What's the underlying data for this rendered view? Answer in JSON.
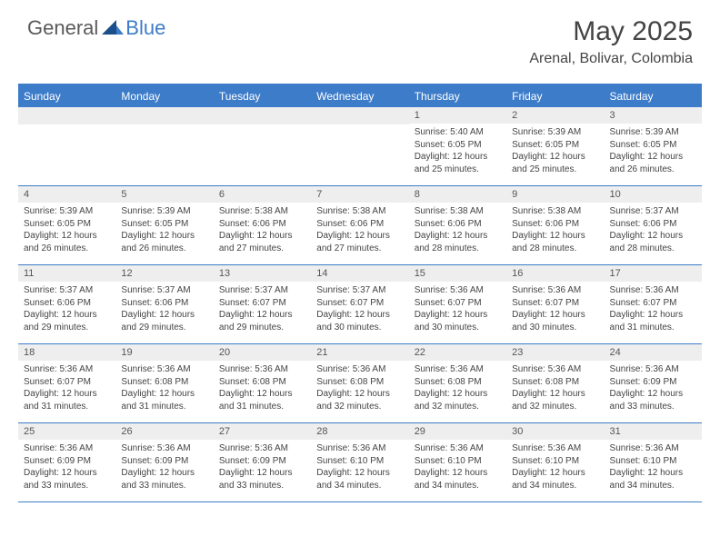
{
  "brand": {
    "general": "General",
    "blue": "Blue"
  },
  "title": "May 2025",
  "location": "Arenal, Bolivar, Colombia",
  "colors": {
    "header_bg": "#3d7cc9",
    "num_bar_bg": "#eeeeee",
    "text": "#444444",
    "border": "#3d7cc9"
  },
  "dow": [
    "Sunday",
    "Monday",
    "Tuesday",
    "Wednesday",
    "Thursday",
    "Friday",
    "Saturday"
  ],
  "weeks": [
    [
      {
        "n": "",
        "sr": "",
        "ss": "",
        "dl": ""
      },
      {
        "n": "",
        "sr": "",
        "ss": "",
        "dl": ""
      },
      {
        "n": "",
        "sr": "",
        "ss": "",
        "dl": ""
      },
      {
        "n": "",
        "sr": "",
        "ss": "",
        "dl": ""
      },
      {
        "n": "1",
        "sr": "Sunrise: 5:40 AM",
        "ss": "Sunset: 6:05 PM",
        "dl": "Daylight: 12 hours and 25 minutes."
      },
      {
        "n": "2",
        "sr": "Sunrise: 5:39 AM",
        "ss": "Sunset: 6:05 PM",
        "dl": "Daylight: 12 hours and 25 minutes."
      },
      {
        "n": "3",
        "sr": "Sunrise: 5:39 AM",
        "ss": "Sunset: 6:05 PM",
        "dl": "Daylight: 12 hours and 26 minutes."
      }
    ],
    [
      {
        "n": "4",
        "sr": "Sunrise: 5:39 AM",
        "ss": "Sunset: 6:05 PM",
        "dl": "Daylight: 12 hours and 26 minutes."
      },
      {
        "n": "5",
        "sr": "Sunrise: 5:39 AM",
        "ss": "Sunset: 6:05 PM",
        "dl": "Daylight: 12 hours and 26 minutes."
      },
      {
        "n": "6",
        "sr": "Sunrise: 5:38 AM",
        "ss": "Sunset: 6:06 PM",
        "dl": "Daylight: 12 hours and 27 minutes."
      },
      {
        "n": "7",
        "sr": "Sunrise: 5:38 AM",
        "ss": "Sunset: 6:06 PM",
        "dl": "Daylight: 12 hours and 27 minutes."
      },
      {
        "n": "8",
        "sr": "Sunrise: 5:38 AM",
        "ss": "Sunset: 6:06 PM",
        "dl": "Daylight: 12 hours and 28 minutes."
      },
      {
        "n": "9",
        "sr": "Sunrise: 5:38 AM",
        "ss": "Sunset: 6:06 PM",
        "dl": "Daylight: 12 hours and 28 minutes."
      },
      {
        "n": "10",
        "sr": "Sunrise: 5:37 AM",
        "ss": "Sunset: 6:06 PM",
        "dl": "Daylight: 12 hours and 28 minutes."
      }
    ],
    [
      {
        "n": "11",
        "sr": "Sunrise: 5:37 AM",
        "ss": "Sunset: 6:06 PM",
        "dl": "Daylight: 12 hours and 29 minutes."
      },
      {
        "n": "12",
        "sr": "Sunrise: 5:37 AM",
        "ss": "Sunset: 6:06 PM",
        "dl": "Daylight: 12 hours and 29 minutes."
      },
      {
        "n": "13",
        "sr": "Sunrise: 5:37 AM",
        "ss": "Sunset: 6:07 PM",
        "dl": "Daylight: 12 hours and 29 minutes."
      },
      {
        "n": "14",
        "sr": "Sunrise: 5:37 AM",
        "ss": "Sunset: 6:07 PM",
        "dl": "Daylight: 12 hours and 30 minutes."
      },
      {
        "n": "15",
        "sr": "Sunrise: 5:36 AM",
        "ss": "Sunset: 6:07 PM",
        "dl": "Daylight: 12 hours and 30 minutes."
      },
      {
        "n": "16",
        "sr": "Sunrise: 5:36 AM",
        "ss": "Sunset: 6:07 PM",
        "dl": "Daylight: 12 hours and 30 minutes."
      },
      {
        "n": "17",
        "sr": "Sunrise: 5:36 AM",
        "ss": "Sunset: 6:07 PM",
        "dl": "Daylight: 12 hours and 31 minutes."
      }
    ],
    [
      {
        "n": "18",
        "sr": "Sunrise: 5:36 AM",
        "ss": "Sunset: 6:07 PM",
        "dl": "Daylight: 12 hours and 31 minutes."
      },
      {
        "n": "19",
        "sr": "Sunrise: 5:36 AM",
        "ss": "Sunset: 6:08 PM",
        "dl": "Daylight: 12 hours and 31 minutes."
      },
      {
        "n": "20",
        "sr": "Sunrise: 5:36 AM",
        "ss": "Sunset: 6:08 PM",
        "dl": "Daylight: 12 hours and 31 minutes."
      },
      {
        "n": "21",
        "sr": "Sunrise: 5:36 AM",
        "ss": "Sunset: 6:08 PM",
        "dl": "Daylight: 12 hours and 32 minutes."
      },
      {
        "n": "22",
        "sr": "Sunrise: 5:36 AM",
        "ss": "Sunset: 6:08 PM",
        "dl": "Daylight: 12 hours and 32 minutes."
      },
      {
        "n": "23",
        "sr": "Sunrise: 5:36 AM",
        "ss": "Sunset: 6:08 PM",
        "dl": "Daylight: 12 hours and 32 minutes."
      },
      {
        "n": "24",
        "sr": "Sunrise: 5:36 AM",
        "ss": "Sunset: 6:09 PM",
        "dl": "Daylight: 12 hours and 33 minutes."
      }
    ],
    [
      {
        "n": "25",
        "sr": "Sunrise: 5:36 AM",
        "ss": "Sunset: 6:09 PM",
        "dl": "Daylight: 12 hours and 33 minutes."
      },
      {
        "n": "26",
        "sr": "Sunrise: 5:36 AM",
        "ss": "Sunset: 6:09 PM",
        "dl": "Daylight: 12 hours and 33 minutes."
      },
      {
        "n": "27",
        "sr": "Sunrise: 5:36 AM",
        "ss": "Sunset: 6:09 PM",
        "dl": "Daylight: 12 hours and 33 minutes."
      },
      {
        "n": "28",
        "sr": "Sunrise: 5:36 AM",
        "ss": "Sunset: 6:10 PM",
        "dl": "Daylight: 12 hours and 34 minutes."
      },
      {
        "n": "29",
        "sr": "Sunrise: 5:36 AM",
        "ss": "Sunset: 6:10 PM",
        "dl": "Daylight: 12 hours and 34 minutes."
      },
      {
        "n": "30",
        "sr": "Sunrise: 5:36 AM",
        "ss": "Sunset: 6:10 PM",
        "dl": "Daylight: 12 hours and 34 minutes."
      },
      {
        "n": "31",
        "sr": "Sunrise: 5:36 AM",
        "ss": "Sunset: 6:10 PM",
        "dl": "Daylight: 12 hours and 34 minutes."
      }
    ]
  ]
}
